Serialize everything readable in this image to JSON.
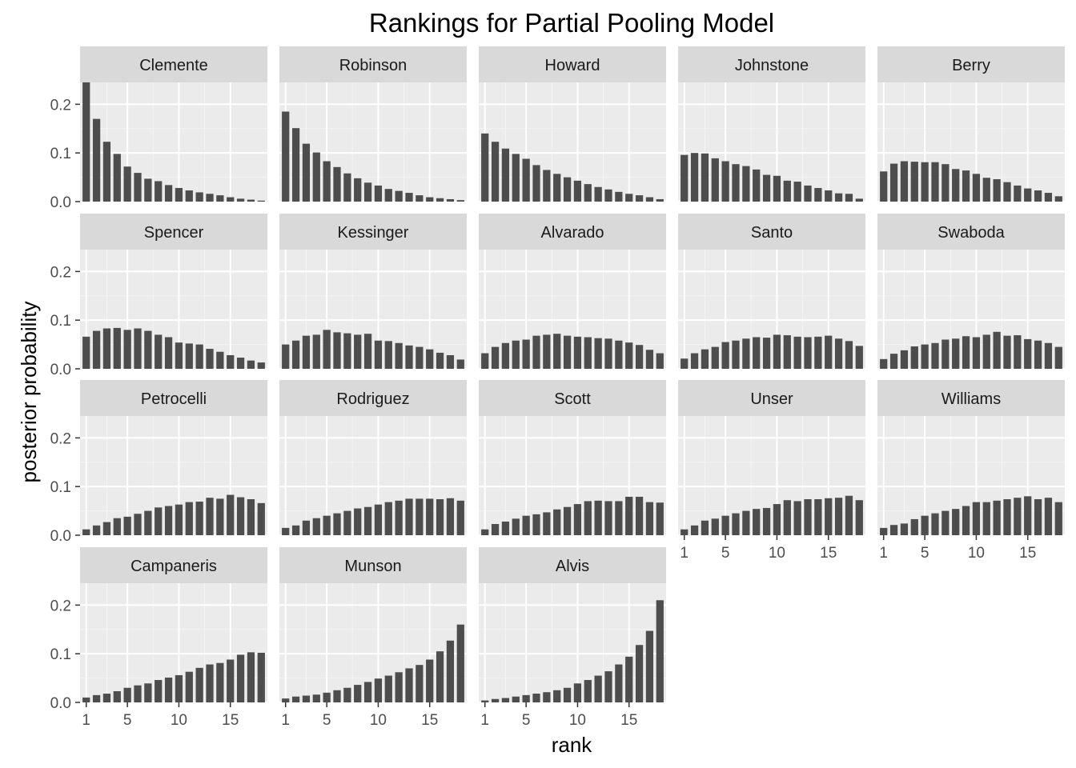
{
  "chart_data": {
    "type": "bar",
    "title": "Rankings for Partial Pooling Model",
    "xlabel": "rank",
    "ylabel": "posterior probability",
    "x": [
      1,
      2,
      3,
      4,
      5,
      6,
      7,
      8,
      9,
      10,
      11,
      12,
      13,
      14,
      15,
      16,
      17,
      18
    ],
    "x_ticks": [
      1,
      5,
      10,
      15
    ],
    "y_ticks": [
      0.0,
      0.1,
      0.2
    ],
    "y_tick_labels": [
      "0.0",
      "0.1",
      "0.2"
    ],
    "ylim": [
      0,
      0.245
    ],
    "facet_layout": "wrap 5 columns",
    "grid": true,
    "colors": {
      "bar": "#4d4d4d",
      "panel_bg": "#ebebeb",
      "strip_bg": "#d9d9d9",
      "grid": "#ffffff"
    },
    "series": [
      {
        "name": "Clemente",
        "values": [
          0.245,
          0.17,
          0.123,
          0.098,
          0.072,
          0.059,
          0.047,
          0.042,
          0.034,
          0.028,
          0.023,
          0.019,
          0.016,
          0.013,
          0.009,
          0.006,
          0.004,
          0.002
        ]
      },
      {
        "name": "Robinson",
        "values": [
          0.185,
          0.151,
          0.119,
          0.101,
          0.083,
          0.071,
          0.058,
          0.048,
          0.039,
          0.033,
          0.026,
          0.022,
          0.018,
          0.013,
          0.009,
          0.007,
          0.005,
          0.003
        ]
      },
      {
        "name": "Howard",
        "values": [
          0.14,
          0.123,
          0.109,
          0.098,
          0.088,
          0.075,
          0.065,
          0.057,
          0.05,
          0.043,
          0.036,
          0.03,
          0.025,
          0.02,
          0.016,
          0.013,
          0.009,
          0.005
        ]
      },
      {
        "name": "Johnstone",
        "values": [
          0.096,
          0.1,
          0.099,
          0.089,
          0.083,
          0.077,
          0.073,
          0.066,
          0.055,
          0.053,
          0.043,
          0.041,
          0.033,
          0.028,
          0.023,
          0.017,
          0.016,
          0.006
        ]
      },
      {
        "name": "Berry",
        "values": [
          0.062,
          0.078,
          0.083,
          0.082,
          0.081,
          0.081,
          0.077,
          0.067,
          0.064,
          0.057,
          0.049,
          0.046,
          0.04,
          0.033,
          0.027,
          0.023,
          0.018,
          0.011
        ]
      },
      {
        "name": "Spencer",
        "values": [
          0.066,
          0.078,
          0.083,
          0.084,
          0.08,
          0.083,
          0.078,
          0.07,
          0.065,
          0.054,
          0.052,
          0.05,
          0.041,
          0.035,
          0.028,
          0.023,
          0.017,
          0.013
        ]
      },
      {
        "name": "Kessinger",
        "values": [
          0.05,
          0.058,
          0.068,
          0.07,
          0.08,
          0.075,
          0.073,
          0.07,
          0.072,
          0.058,
          0.057,
          0.053,
          0.048,
          0.045,
          0.04,
          0.033,
          0.028,
          0.019
        ]
      },
      {
        "name": "Alvarado",
        "values": [
          0.032,
          0.045,
          0.053,
          0.058,
          0.06,
          0.068,
          0.07,
          0.072,
          0.068,
          0.066,
          0.065,
          0.063,
          0.062,
          0.058,
          0.054,
          0.049,
          0.039,
          0.032
        ]
      },
      {
        "name": "Santo",
        "values": [
          0.021,
          0.032,
          0.04,
          0.045,
          0.055,
          0.058,
          0.062,
          0.065,
          0.064,
          0.07,
          0.069,
          0.066,
          0.065,
          0.066,
          0.068,
          0.062,
          0.057,
          0.047
        ]
      },
      {
        "name": "Swaboda",
        "values": [
          0.02,
          0.031,
          0.038,
          0.046,
          0.05,
          0.053,
          0.06,
          0.062,
          0.067,
          0.065,
          0.07,
          0.076,
          0.068,
          0.069,
          0.061,
          0.058,
          0.053,
          0.045
        ]
      },
      {
        "name": "Petrocelli",
        "values": [
          0.012,
          0.02,
          0.027,
          0.035,
          0.038,
          0.044,
          0.05,
          0.057,
          0.06,
          0.063,
          0.068,
          0.069,
          0.077,
          0.075,
          0.083,
          0.078,
          0.074,
          0.066
        ]
      },
      {
        "name": "Rodriguez",
        "values": [
          0.015,
          0.02,
          0.03,
          0.035,
          0.04,
          0.045,
          0.05,
          0.055,
          0.058,
          0.063,
          0.068,
          0.071,
          0.075,
          0.075,
          0.075,
          0.074,
          0.076,
          0.071
        ]
      },
      {
        "name": "Scott",
        "values": [
          0.012,
          0.023,
          0.028,
          0.034,
          0.04,
          0.043,
          0.047,
          0.053,
          0.058,
          0.064,
          0.07,
          0.071,
          0.07,
          0.07,
          0.079,
          0.079,
          0.068,
          0.067
        ]
      },
      {
        "name": "Unser",
        "values": [
          0.012,
          0.02,
          0.03,
          0.034,
          0.04,
          0.045,
          0.05,
          0.054,
          0.056,
          0.064,
          0.072,
          0.07,
          0.074,
          0.074,
          0.076,
          0.077,
          0.081,
          0.072
        ]
      },
      {
        "name": "Williams",
        "values": [
          0.015,
          0.021,
          0.024,
          0.033,
          0.04,
          0.045,
          0.05,
          0.054,
          0.06,
          0.068,
          0.068,
          0.071,
          0.074,
          0.077,
          0.08,
          0.074,
          0.077,
          0.068
        ]
      },
      {
        "name": "Campaneris",
        "values": [
          0.01,
          0.015,
          0.018,
          0.023,
          0.03,
          0.035,
          0.039,
          0.046,
          0.051,
          0.056,
          0.063,
          0.071,
          0.078,
          0.081,
          0.088,
          0.098,
          0.103,
          0.102
        ]
      },
      {
        "name": "Munson",
        "values": [
          0.008,
          0.012,
          0.014,
          0.016,
          0.02,
          0.025,
          0.03,
          0.036,
          0.042,
          0.049,
          0.055,
          0.062,
          0.07,
          0.077,
          0.088,
          0.105,
          0.127,
          0.16
        ]
      },
      {
        "name": "Alvis",
        "values": [
          0.004,
          0.007,
          0.009,
          0.012,
          0.015,
          0.018,
          0.021,
          0.025,
          0.03,
          0.039,
          0.046,
          0.055,
          0.064,
          0.078,
          0.094,
          0.118,
          0.147,
          0.21
        ]
      }
    ]
  }
}
